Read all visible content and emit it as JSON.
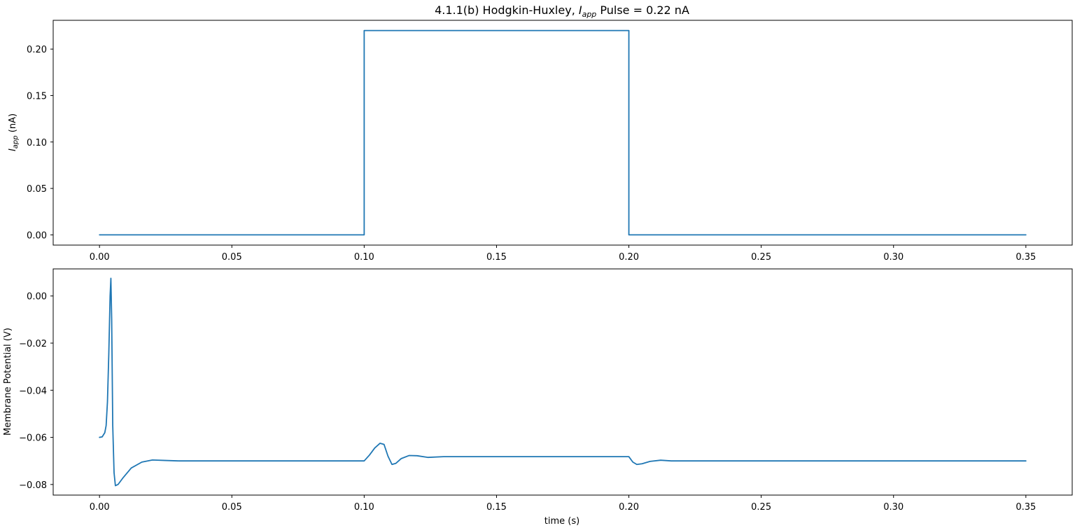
{
  "chart_data": [
    {
      "type": "line",
      "title_prefix": "4.1.1(b) Hodgkin-Huxley, ",
      "title_italic": "I",
      "title_sub": "app",
      "title_suffix": " Pulse = 0.22 nA",
      "ylabel_italic": "I",
      "ylabel_sub": "app",
      "ylabel_suffix": " (nA)",
      "xlabel": "",
      "xlim": [
        -0.0175,
        0.3675
      ],
      "ylim": [
        -0.011,
        0.231
      ],
      "xticks": [
        0.0,
        0.05,
        0.1,
        0.15,
        0.2,
        0.25,
        0.3,
        0.35
      ],
      "xtick_labels": [
        "0.00",
        "0.05",
        "0.10",
        "0.15",
        "0.20",
        "0.25",
        "0.30",
        "0.35"
      ],
      "yticks": [
        0.0,
        0.05,
        0.1,
        0.15,
        0.2
      ],
      "ytick_labels": [
        "0.00",
        "0.05",
        "0.10",
        "0.15",
        "0.20"
      ],
      "grid": false,
      "series": [
        {
          "color": "#1f77b4",
          "x": [
            0.0,
            0.1,
            0.1,
            0.2,
            0.2,
            0.35
          ],
          "y": [
            0.0,
            0.0,
            0.22,
            0.22,
            0.0,
            0.0
          ]
        }
      ]
    },
    {
      "type": "line",
      "xlabel": "time (s)",
      "ylabel": "Membrane Potential (V)",
      "xlim": [
        -0.0175,
        0.3675
      ],
      "ylim": [
        -0.0845,
        0.0115
      ],
      "xticks": [
        0.0,
        0.05,
        0.1,
        0.15,
        0.2,
        0.25,
        0.3,
        0.35
      ],
      "xtick_labels": [
        "0.00",
        "0.05",
        "0.10",
        "0.15",
        "0.20",
        "0.25",
        "0.30",
        "0.35"
      ],
      "yticks": [
        0.0,
        -0.02,
        -0.04,
        -0.06,
        -0.08
      ],
      "ytick_labels": [
        "0.00",
        "−0.02",
        "−0.04",
        "−0.06",
        "−0.08"
      ],
      "grid": false,
      "series": [
        {
          "color": "#1f77b4",
          "x": [
            0.0,
            0.001,
            0.002,
            0.0025,
            0.003,
            0.0035,
            0.004,
            0.0043,
            0.0046,
            0.005,
            0.0055,
            0.006,
            0.007,
            0.009,
            0.012,
            0.016,
            0.02,
            0.025,
            0.03,
            0.04,
            0.1,
            0.102,
            0.104,
            0.106,
            0.1075,
            0.109,
            0.1105,
            0.112,
            0.114,
            0.117,
            0.12,
            0.124,
            0.13,
            0.14,
            0.2,
            0.2015,
            0.203,
            0.205,
            0.208,
            0.212,
            0.216,
            0.22,
            0.23,
            0.35
          ],
          "y": [
            -0.06,
            -0.0598,
            -0.058,
            -0.055,
            -0.045,
            -0.025,
            0.0,
            0.0075,
            -0.01,
            -0.055,
            -0.075,
            -0.0805,
            -0.08,
            -0.077,
            -0.073,
            -0.0705,
            -0.0696,
            -0.0698,
            -0.07,
            -0.07,
            -0.07,
            -0.0675,
            -0.0645,
            -0.0625,
            -0.063,
            -0.068,
            -0.0715,
            -0.071,
            -0.069,
            -0.0677,
            -0.0678,
            -0.0685,
            -0.0682,
            -0.0682,
            -0.0682,
            -0.0705,
            -0.0715,
            -0.0712,
            -0.0702,
            -0.0697,
            -0.07,
            -0.07,
            -0.07,
            -0.07
          ]
        }
      ]
    }
  ]
}
